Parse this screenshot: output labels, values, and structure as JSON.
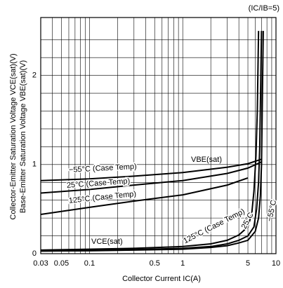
{
  "chart_data": {
    "type": "line",
    "title": "(IC/IB=5)",
    "x_label": "Collector Current IC(A)",
    "y_label": [
      "Collector-Emitter Saturation Voltage VCE(sat)(V)",
      "Base-Emitter Saturation Voltage VBE(sat)(V)"
    ],
    "annotations": [
      "VBE(sat)",
      "VCE(sat)"
    ],
    "x_log": true,
    "xlim": [
      0.03,
      10
    ],
    "xticks": [
      0.03,
      0.05,
      0.1,
      0.5,
      1,
      5,
      10
    ],
    "x_minor_ticks": [
      0.04,
      0.06,
      0.07,
      0.08,
      0.09,
      0.2,
      0.3,
      0.4,
      0.6,
      0.7,
      0.8,
      0.9,
      2,
      3,
      4,
      6,
      7,
      8,
      9
    ],
    "ylim": [
      0,
      2.65
    ],
    "yticks": [
      0,
      1,
      2
    ],
    "y_minor_ticks": [
      0.2,
      0.4,
      0.6,
      0.8,
      1.2,
      1.4,
      1.6,
      1.8,
      2.2,
      2.4
    ],
    "grid": true,
    "series": [
      {
        "name": "−55°C (Case Temp)",
        "color": "#000000",
        "x": [
          0.03,
          0.1,
          0.3,
          1,
          3,
          5,
          7
        ],
        "values": [
          0.82,
          0.84,
          0.87,
          0.91,
          0.97,
          1.01,
          1.06
        ]
      },
      {
        "name": "25°C (Case Temp)",
        "color": "#000000",
        "x": [
          0.03,
          0.1,
          0.3,
          1,
          3,
          5,
          7
        ],
        "values": [
          0.68,
          0.72,
          0.77,
          0.82,
          0.9,
          0.96,
          1.03
        ]
      },
      {
        "name": "125°C (Case Temp)",
        "color": "#000000",
        "x": [
          0.03,
          0.1,
          0.3,
          1,
          3,
          5
        ],
        "values": [
          0.44,
          0.52,
          0.59,
          0.66,
          0.77,
          0.85
        ]
      },
      {
        "name": "125°C (Case Temp)",
        "color": "#000000",
        "x": [
          0.03,
          0.1,
          0.3,
          1,
          2,
          3,
          4,
          5,
          5.5,
          5.8,
          6.1,
          6.3,
          6.5
        ],
        "values": [
          0.04,
          0.05,
          0.06,
          0.08,
          0.11,
          0.15,
          0.21,
          0.3,
          0.45,
          0.7,
          1.1,
          1.6,
          2.5
        ]
      },
      {
        "name": "25°C",
        "color": "#000000",
        "x": [
          0.03,
          0.1,
          0.3,
          1,
          2,
          3,
          4,
          5,
          5.8,
          6.2,
          6.5,
          6.7,
          7
        ],
        "values": [
          0.03,
          0.035,
          0.045,
          0.06,
          0.08,
          0.11,
          0.15,
          0.2,
          0.3,
          0.5,
          0.8,
          1.2,
          2.5
        ]
      },
      {
        "name": "−55°C",
        "color": "#000000",
        "x": [
          0.03,
          0.1,
          0.3,
          1,
          2,
          3,
          4,
          5,
          6,
          6.5,
          6.8,
          7,
          7.3
        ],
        "values": [
          0.03,
          0.032,
          0.04,
          0.05,
          0.07,
          0.09,
          0.12,
          0.15,
          0.25,
          0.4,
          0.65,
          1.0,
          2.5
        ]
      }
    ]
  }
}
